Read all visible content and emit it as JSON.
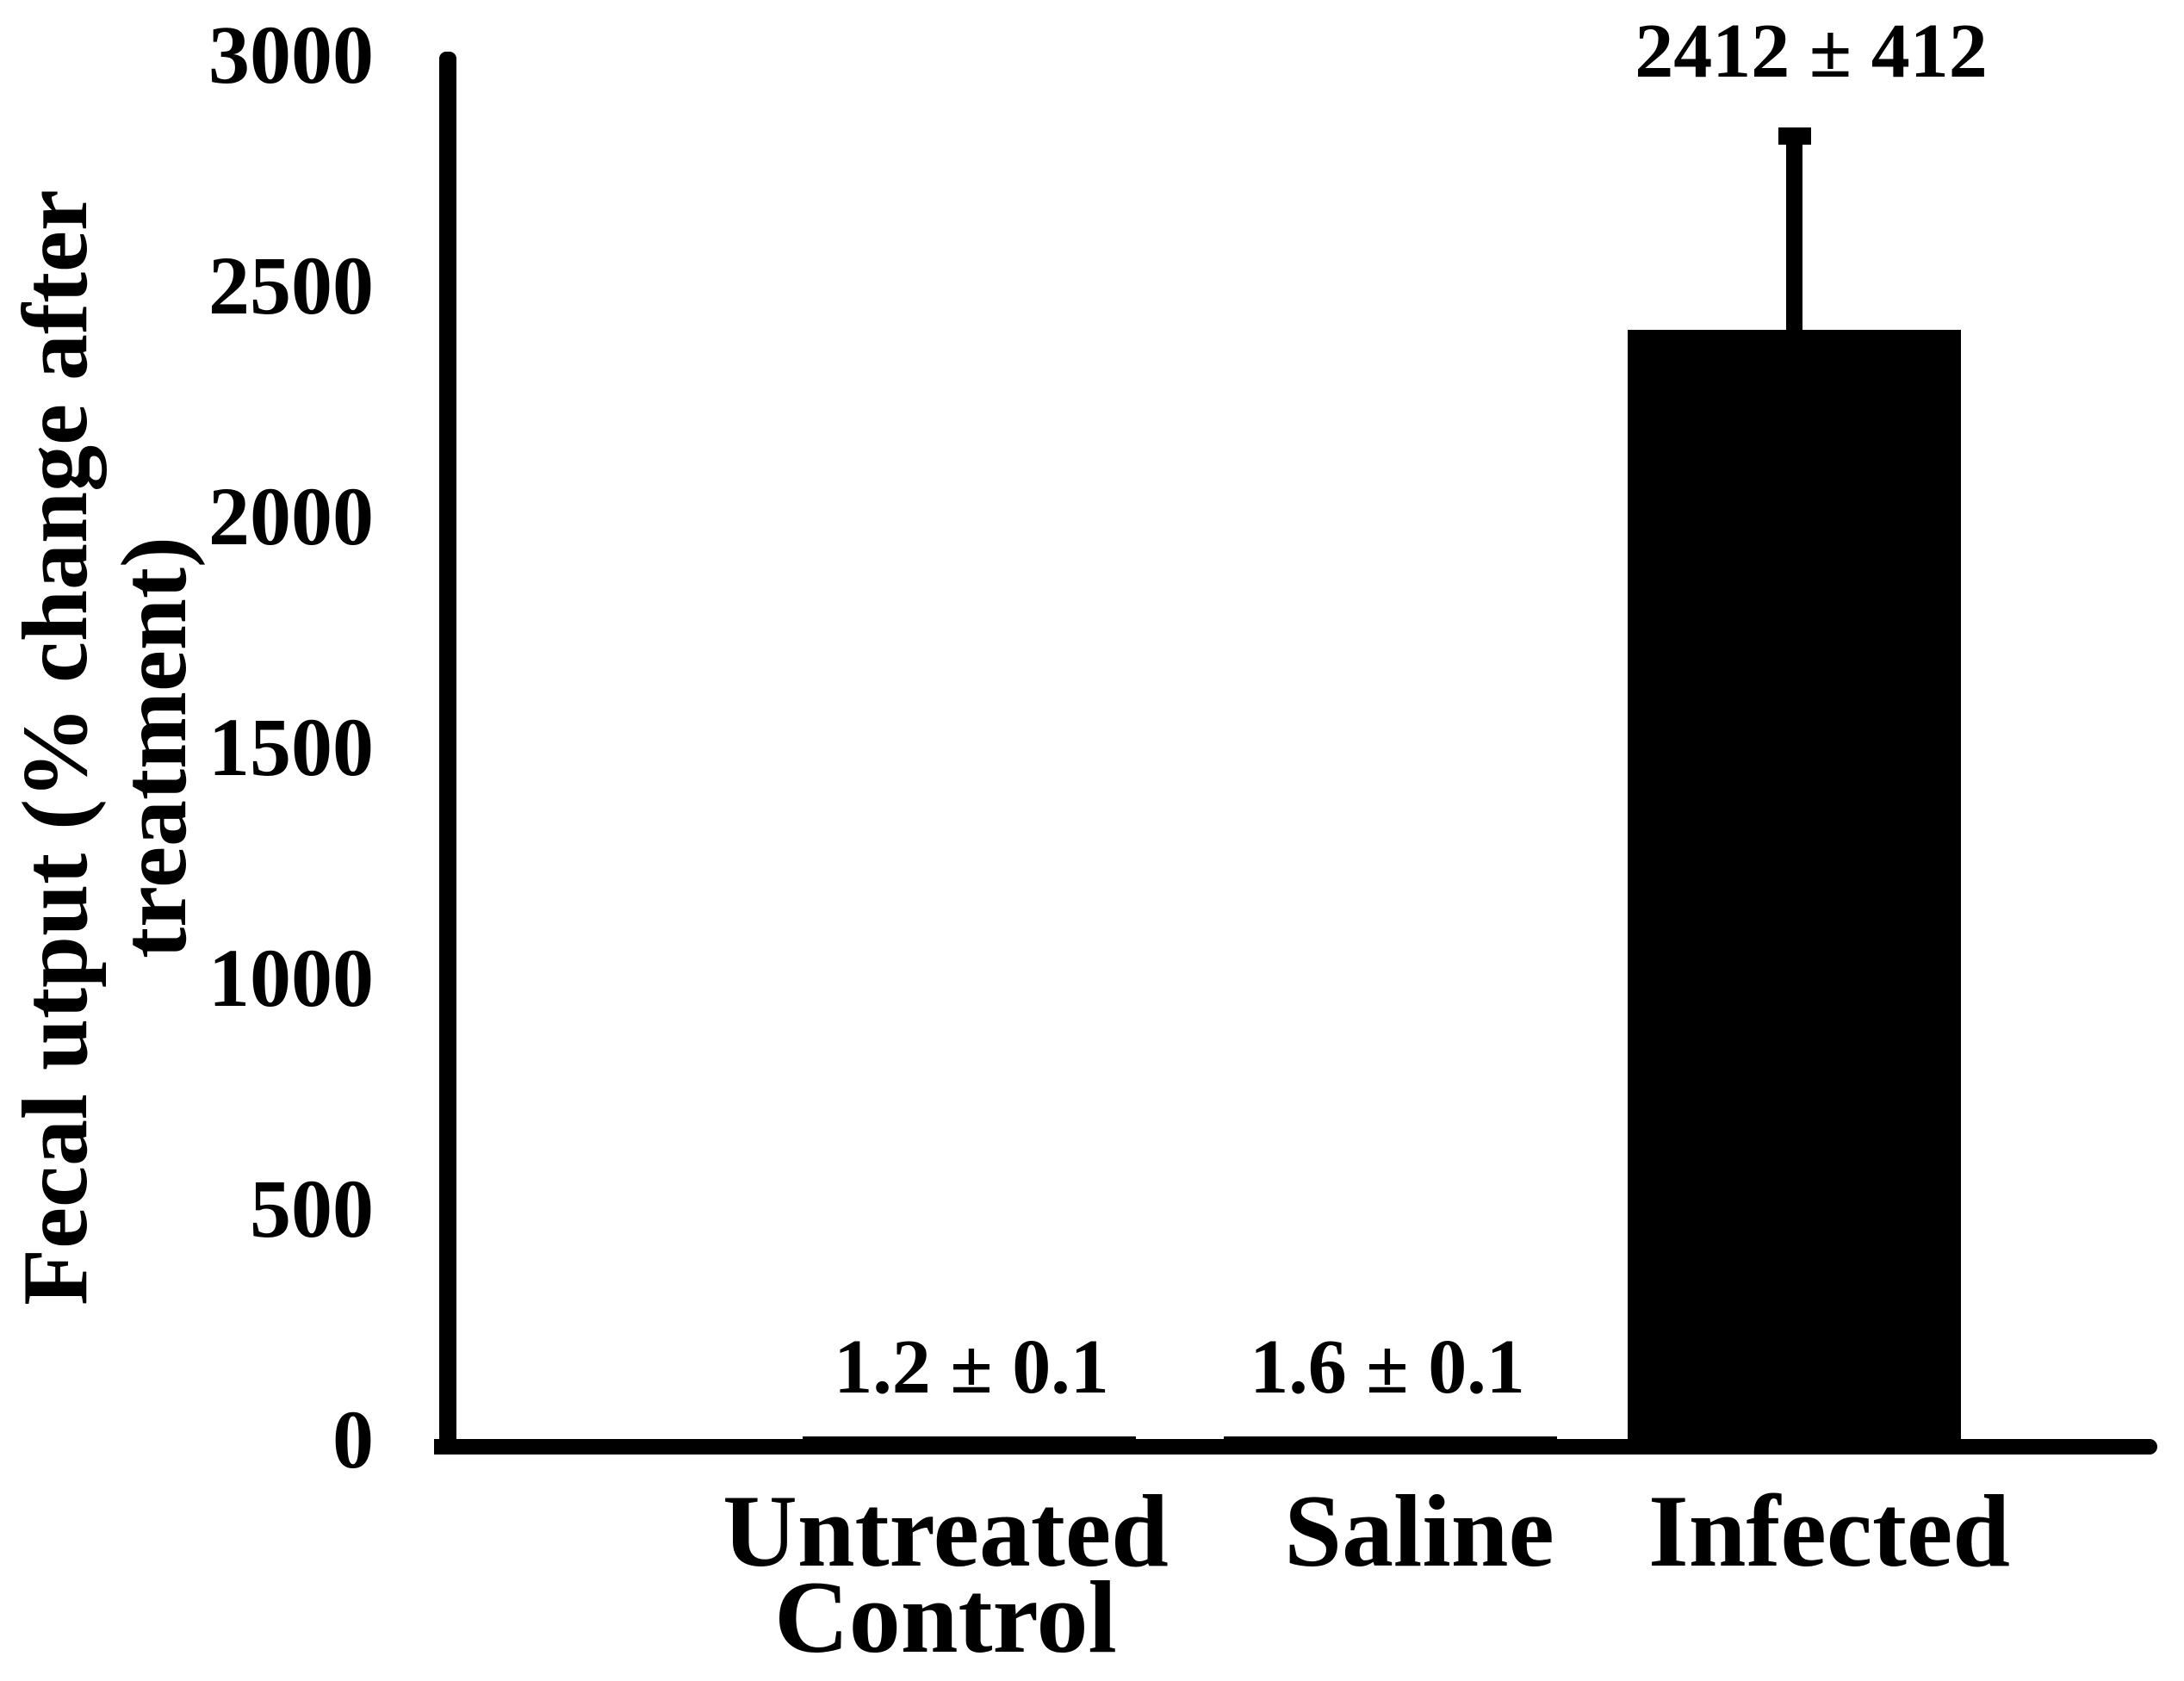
{
  "chart_data": {
    "type": "bar",
    "title": "",
    "ylabel": "Fecal utput (% change after treatment)",
    "ylabel_lines": [
      "Fecal utput (% change after",
      "treatment)"
    ],
    "categories": [
      "Untreated Control",
      "Saline",
      "Infected"
    ],
    "category_label_lines": [
      [
        "Untreated",
        "Control"
      ],
      [
        "Saline"
      ],
      [
        "Infected"
      ]
    ],
    "values": [
      1.2,
      1.6,
      2412
    ],
    "errors": [
      0.1,
      0.1,
      412
    ],
    "error_bar_direction": "upper-only",
    "annotations": [
      "1.2 ± 0.1",
      "1.6 ± 0.1",
      "2412 ± 412"
    ],
    "yticks": [
      0,
      500,
      1000,
      1500,
      2000,
      2500,
      3000
    ],
    "ylim": [
      0,
      3000
    ],
    "xlabel": "",
    "grid": false,
    "legend": false,
    "bar_color": "#000000",
    "axis_color": "#000000",
    "background_color": "#ffffff"
  }
}
